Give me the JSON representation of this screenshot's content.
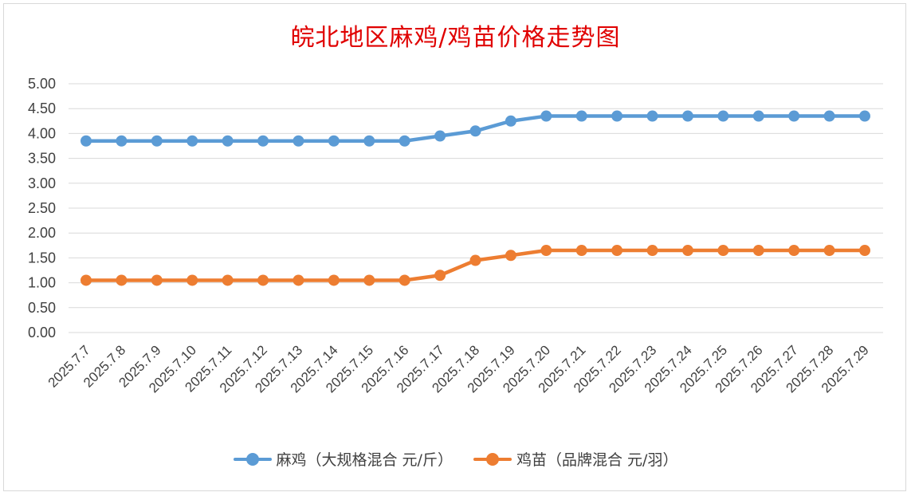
{
  "chart_data": {
    "type": "line",
    "title": "皖北地区麻鸡/鸡苗价格走势图",
    "categories": [
      "2025.7.7",
      "2025.7.8",
      "2025.7.9",
      "2025.7.10",
      "2025.7.11",
      "2025.7.12",
      "2025.7.13",
      "2025.7.14",
      "2025.7.15",
      "2025.7.16",
      "2025.7.17",
      "2025.7.18",
      "2025.7.19",
      "2025.7.20",
      "2025.7.21",
      "2025.7.22",
      "2025.7.23",
      "2025.7.24",
      "2025.7.25",
      "2025.7.26",
      "2025.7.27",
      "2025.7.28",
      "2025.7.29"
    ],
    "y_ticks": [
      "0.00",
      "0.50",
      "1.00",
      "1.50",
      "2.00",
      "2.50",
      "3.00",
      "3.50",
      "4.00",
      "4.50",
      "5.00"
    ],
    "ylim": [
      0,
      5
    ],
    "grid": true,
    "legend_position": "bottom",
    "series": [
      {
        "name": "麻鸡（大规格混合 元/斤）",
        "color": "#5b9bd5",
        "values": [
          3.85,
          3.85,
          3.85,
          3.85,
          3.85,
          3.85,
          3.85,
          3.85,
          3.85,
          3.85,
          3.95,
          4.05,
          4.25,
          4.35,
          4.35,
          4.35,
          4.35,
          4.35,
          4.35,
          4.35,
          4.35,
          4.35,
          4.35
        ]
      },
      {
        "name": "鸡苗（品牌混合 元/羽）",
        "color": "#ed7d31",
        "values": [
          1.05,
          1.05,
          1.05,
          1.05,
          1.05,
          1.05,
          1.05,
          1.05,
          1.05,
          1.05,
          1.15,
          1.45,
          1.55,
          1.65,
          1.65,
          1.65,
          1.65,
          1.65,
          1.65,
          1.65,
          1.65,
          1.65,
          1.65
        ]
      }
    ]
  }
}
